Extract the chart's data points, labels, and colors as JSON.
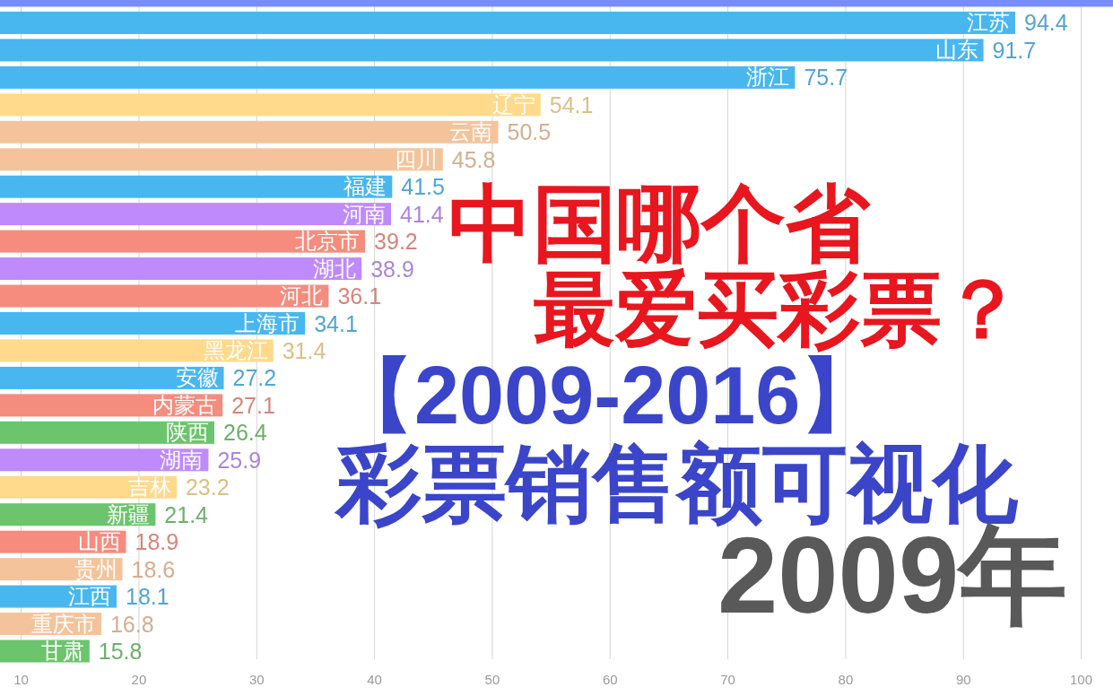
{
  "chart_data": {
    "type": "bar",
    "orientation": "horizontal",
    "title": "中国哪个省最爱买彩票？",
    "subtitle": "【2009-2016】彩票销售额可视化",
    "annotations": [
      "2009年"
    ],
    "categories": [
      null,
      "江苏",
      "山东",
      "浙江",
      "辽宁",
      "云南",
      "四川",
      "福建",
      "河南",
      "北京市",
      "湖北",
      "河北",
      "上海市",
      "黑龙江",
      "安徽",
      "内蒙古",
      "陕西",
      "湖南",
      "吉林",
      "新疆",
      "山西",
      "贵州",
      "江西",
      "重庆市",
      "甘肃"
    ],
    "values": [
      102.7,
      94.4,
      91.7,
      75.7,
      54.1,
      50.5,
      45.8,
      41.5,
      41.4,
      39.2,
      38.9,
      36.1,
      34.1,
      31.4,
      27.2,
      27.1,
      26.4,
      25.9,
      23.2,
      21.4,
      18.9,
      18.6,
      18.1,
      16.8,
      15.8
    ],
    "value_labels": [
      null,
      "94.4",
      "91.7",
      "75.7",
      "54.1",
      "50.5",
      "45.8",
      "41.5",
      "41.4",
      "39.2",
      "38.9",
      "36.1",
      "34.1",
      "31.4",
      "27.2",
      "27.1",
      "26.4",
      "25.9",
      "23.2",
      "21.4",
      "18.9",
      "18.6",
      "18.1",
      "16.8",
      "15.8"
    ],
    "colors": [
      "#768cff",
      "#48b7f0",
      "#48b7f0",
      "#48b7f0",
      "#ffd98c",
      "#f5c39b",
      "#f5c39b",
      "#48b7f0",
      "#bf8afc",
      "#f58c7e",
      "#bf8afc",
      "#f58c7e",
      "#48b7f0",
      "#ffd98c",
      "#48b7f0",
      "#f58c7e",
      "#6cc46c",
      "#bf8afc",
      "#ffd98c",
      "#6cc46c",
      "#f58c7e",
      "#f5c39b",
      "#48b7f0",
      "#f5c39b",
      "#6cc46c"
    ],
    "xlim": [
      8.2,
      102.7
    ],
    "xticks": [
      10,
      20,
      30,
      40,
      50,
      60,
      70,
      80,
      90,
      100
    ],
    "grid": "x"
  }
}
